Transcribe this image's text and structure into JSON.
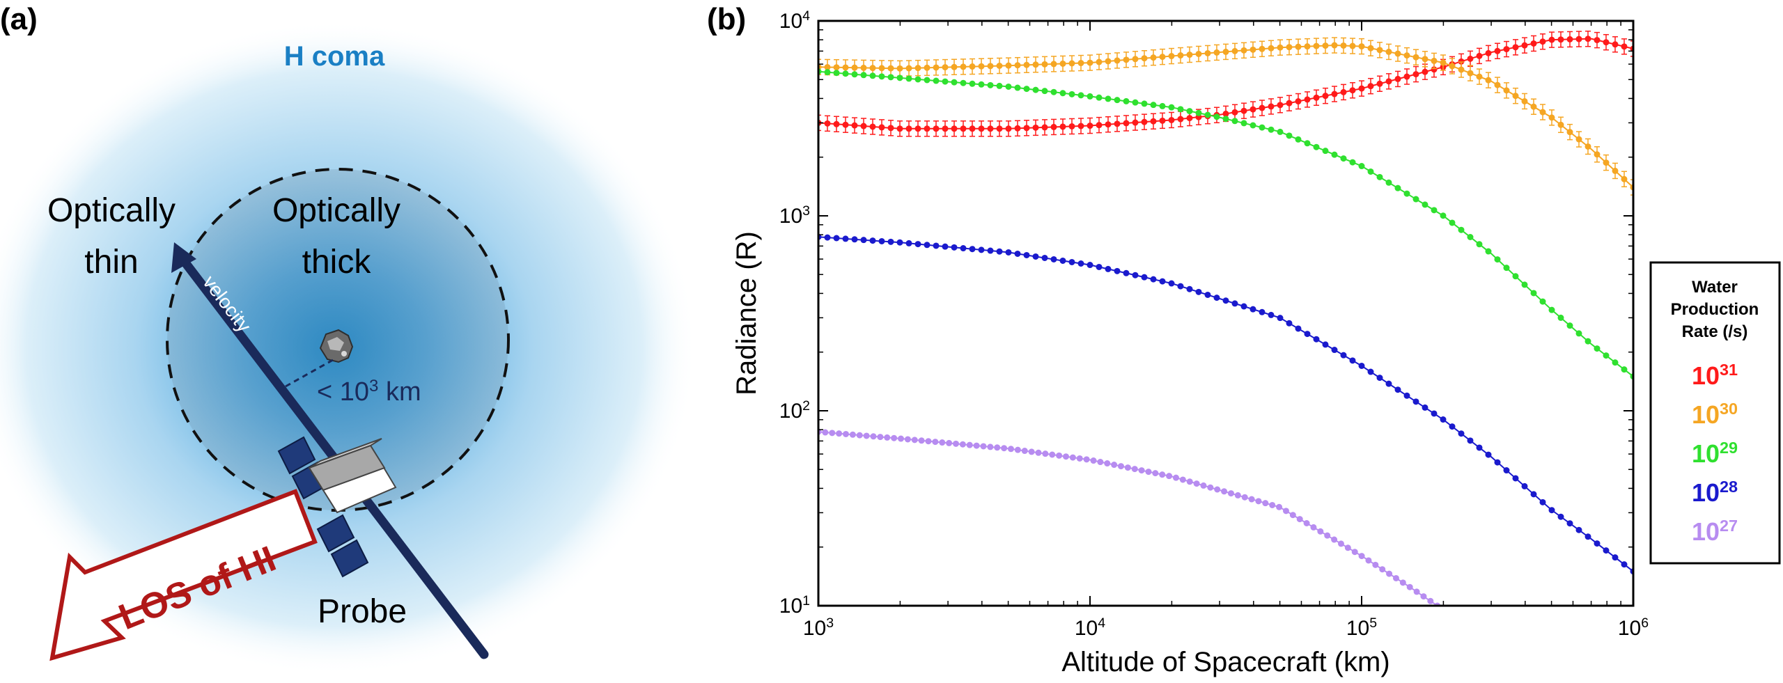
{
  "panel_a": {
    "label": "(a)",
    "coma_label": "H coma",
    "thin_line1": "Optically",
    "thin_line2": "thin",
    "thick_line1": "Optically",
    "thick_line2": "thick",
    "velocity_label": "velocity",
    "distance_prefix": "< 10",
    "distance_exp": "3",
    "distance_unit": " km",
    "los_label": "LOS of HI",
    "probe_label": "Probe",
    "colors": {
      "coma": "#3aa0d8",
      "coma_label": "#1a7fc4",
      "velocity_arrow": "#1a2a5a",
      "los": "#b01818",
      "panel": "#1f3a7a"
    }
  },
  "panel_b": {
    "label": "(b)",
    "legend": {
      "title_lines": [
        "Water",
        "Production",
        "Rate (/s)"
      ],
      "entries": [
        {
          "base": "10",
          "exp": "31",
          "color": "#ff1a1a"
        },
        {
          "base": "10",
          "exp": "30",
          "color": "#f5a623"
        },
        {
          "base": "10",
          "exp": "29",
          "color": "#2fe02f"
        },
        {
          "base": "10",
          "exp": "28",
          "color": "#1a1acd"
        },
        {
          "base": "10",
          "exp": "27",
          "color": "#b78cf0"
        }
      ]
    }
  },
  "chart_data": {
    "type": "scatter",
    "xlabel": "Altitude of Spacecraft (km)",
    "ylabel": "Radiance (R)",
    "xscale": "log",
    "yscale": "log",
    "xlim": [
      1000,
      1000000
    ],
    "ylim": [
      10,
      10000
    ],
    "xticks": [
      {
        "base": "10",
        "exp": "3",
        "value": 1000
      },
      {
        "base": "10",
        "exp": "4",
        "value": 10000
      },
      {
        "base": "10",
        "exp": "5",
        "value": 100000
      },
      {
        "base": "10",
        "exp": "6",
        "value": 1000000
      }
    ],
    "yticks": [
      {
        "base": "10",
        "exp": "1",
        "value": 10
      },
      {
        "base": "10",
        "exp": "2",
        "value": 100
      },
      {
        "base": "10",
        "exp": "3",
        "value": 1000
      },
      {
        "base": "10",
        "exp": "4",
        "value": 10000
      }
    ],
    "grid": false,
    "legend_position": "right, outside plot",
    "series": [
      {
        "legend_index": 0,
        "color": "#ff1a1a",
        "error_bars": true,
        "x": [
          1000,
          2000,
          5000,
          10000,
          20000,
          30000,
          50000,
          100000,
          200000,
          300000,
          500000,
          700000,
          1000000
        ],
        "y": [
          3000,
          2800,
          2800,
          2900,
          3100,
          3300,
          3700,
          4500,
          5800,
          6900,
          8000,
          8100,
          7200
        ]
      },
      {
        "legend_index": 1,
        "color": "#f5a623",
        "error_bars": true,
        "x": [
          1000,
          2000,
          5000,
          10000,
          20000,
          50000,
          80000,
          100000,
          200000,
          300000,
          500000,
          700000,
          1000000
        ],
        "y": [
          5800,
          5700,
          5900,
          6100,
          6600,
          7300,
          7500,
          7400,
          6100,
          4900,
          3200,
          2200,
          1400
        ]
      },
      {
        "legend_index": 2,
        "color": "#2fe02f",
        "error_bars": false,
        "x": [
          1000,
          2000,
          5000,
          10000,
          20000,
          30000,
          50000,
          100000,
          200000,
          300000,
          500000,
          700000,
          1000000
        ],
        "y": [
          5500,
          5100,
          4600,
          4100,
          3600,
          3200,
          2700,
          1800,
          1000,
          640,
          330,
          220,
          150
        ]
      },
      {
        "legend_index": 3,
        "color": "#1a1acd",
        "error_bars": false,
        "x": [
          1000,
          2000,
          5000,
          10000,
          20000,
          50000,
          100000,
          200000,
          300000,
          500000,
          700000,
          1000000
        ],
        "y": [
          780,
          730,
          650,
          560,
          450,
          300,
          170,
          90,
          58,
          31,
          22,
          15
        ]
      },
      {
        "legend_index": 4,
        "color": "#b78cf0",
        "error_bars": false,
        "x": [
          1000,
          2000,
          5000,
          10000,
          20000,
          50000,
          100000,
          150000,
          190000
        ],
        "y": [
          78,
          72,
          64,
          56,
          46,
          32,
          18,
          12.5,
          10
        ]
      }
    ]
  }
}
